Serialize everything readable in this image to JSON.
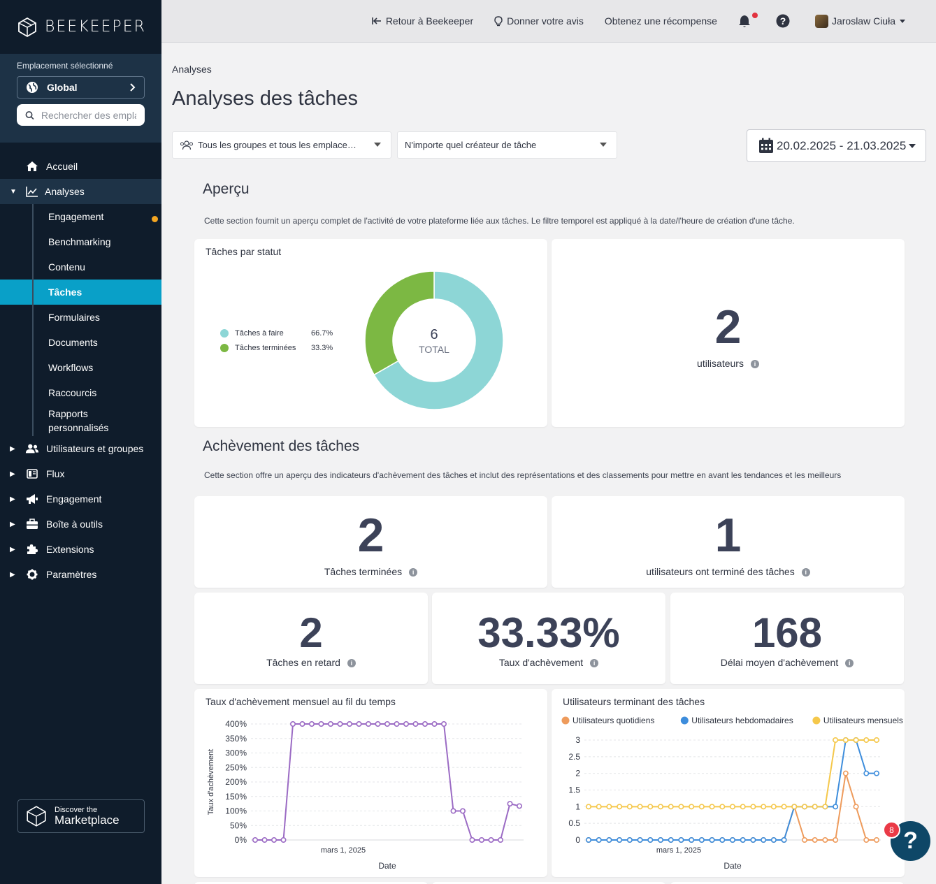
{
  "app": {
    "logo_text": "BEEKEEPER"
  },
  "location": {
    "label": "Emplacement sélectionné",
    "selected": "Global",
    "search_placeholder": "Rechercher des emplac"
  },
  "nav": {
    "accueil": "Accueil",
    "analyses": "Analyses",
    "sub": [
      "Engagement",
      "Benchmarking",
      "Contenu",
      "Tâches",
      "Formulaires",
      "Documents",
      "Workflows",
      "Raccourcis",
      "Rapports personnalisés"
    ],
    "utilisateurs": "Utilisateurs et groupes",
    "flux": "Flux",
    "engagement": "Engagement",
    "boite": "Boîte à outils",
    "extensions": "Extensions",
    "parametres": "Paramètres"
  },
  "marketplace": {
    "line1": "Discover the",
    "line2": "Marketplace"
  },
  "topbar": {
    "back": "Retour à Beekeeper",
    "feedback": "Donner votre avis",
    "reward": "Obtenez une récompense",
    "user": "Jaroslaw Ciuła"
  },
  "page": {
    "breadcrumb": "Analyses",
    "title": "Analyses des tâches"
  },
  "filters": {
    "groups": "Tous les groupes et tous les emplace…",
    "creator": "N'importe quel créateur de tâche",
    "date_range": "20.02.2025 - 21.03.2025"
  },
  "overview": {
    "title": "Aperçu",
    "desc": "Cette section fournit un aperçu complet de l'activité de votre plateforme liée aux tâches. Le filtre temporel est appliqué à la date/l'heure de création d'une tâche.",
    "status_card_title": "Tâches par statut",
    "donut_total": "6",
    "donut_total_label": "TOTAL",
    "users_value": "2",
    "users_label": "utilisateurs"
  },
  "completion": {
    "title": "Achèvement des tâches",
    "desc": "Cette section offre un aperçu des indicateurs d'achèvement des tâches et inclut des représentations et des classements pour mettre en avant les tendances et les meilleurs",
    "m1_value": "2",
    "m1_label": "Tâches terminées",
    "m2_value": "1",
    "m2_label": "utilisateurs ont terminé des tâches",
    "m3_value": "2",
    "m3_label": "Tâches en retard",
    "m4_value": "33.33%",
    "m4_label": "Taux d'achèvement",
    "m5_value": "168",
    "m5_label": "Délai moyen d'achèvement"
  },
  "help": {
    "badge": "8",
    "symbol": "?"
  },
  "chart_data": [
    {
      "type": "pie",
      "title": "Tâches par statut",
      "categories": [
        "Tâches à faire",
        "Tâches terminées"
      ],
      "values": [
        66.7,
        33.3
      ],
      "labels": [
        "66.7%",
        "33.3%"
      ],
      "colors": [
        "#8dd6d6",
        "#7cb843"
      ],
      "center_value": "6",
      "center_label": "TOTAL"
    },
    {
      "type": "line",
      "title": "Taux d'achèvement mensuel au fil du temps",
      "xlabel": "Date",
      "ylabel": "Taux d'achèvement",
      "x_tick_label": "mars 1, 2025",
      "yticks": [
        "0%",
        "50%",
        "100%",
        "150%",
        "200%",
        "250%",
        "300%",
        "350%",
        "400%"
      ],
      "ylim": [
        0,
        400
      ],
      "color": "#9b6bc4",
      "series": [
        {
          "values": [
            0,
            0,
            0,
            0,
            400,
            400,
            400,
            400,
            400,
            400,
            400,
            400,
            400,
            400,
            400,
            400,
            400,
            400,
            400,
            400,
            400,
            100,
            100,
            0,
            0,
            0,
            0,
            125,
            117
          ]
        }
      ]
    },
    {
      "type": "line",
      "title": "Utilisateurs terminant des tâches",
      "xlabel": "Date",
      "x_tick_label": "mars 1, 2025",
      "yticks": [
        "0",
        "0.5",
        "1",
        "1.5",
        "2",
        "2.5",
        "3"
      ],
      "ylim": [
        0,
        3
      ],
      "legend": "top-left",
      "series": [
        {
          "name": "Utilisateurs quotidiens",
          "color": "#ee9b5c",
          "values": [
            0,
            0,
            0,
            0,
            0,
            0,
            0,
            0,
            0,
            0,
            0,
            0,
            0,
            0,
            0,
            0,
            0,
            0,
            0,
            0,
            1,
            0,
            0,
            0,
            0,
            2,
            1,
            0,
            0
          ]
        },
        {
          "name": "Utilisateurs hebdomadaires",
          "color": "#3d8ddc",
          "values": [
            0,
            0,
            0,
            0,
            0,
            0,
            0,
            0,
            0,
            0,
            0,
            0,
            0,
            0,
            0,
            0,
            0,
            0,
            0,
            0,
            1,
            1,
            1,
            1,
            1,
            3,
            3,
            2,
            2
          ]
        },
        {
          "name": "Utilisateurs mensuels",
          "color": "#f5c84b",
          "values": [
            1,
            1,
            1,
            1,
            1,
            1,
            1,
            1,
            1,
            1,
            1,
            1,
            1,
            1,
            1,
            1,
            1,
            1,
            1,
            1,
            1,
            1,
            1,
            1,
            3,
            3,
            3,
            3,
            3
          ]
        }
      ]
    }
  ]
}
